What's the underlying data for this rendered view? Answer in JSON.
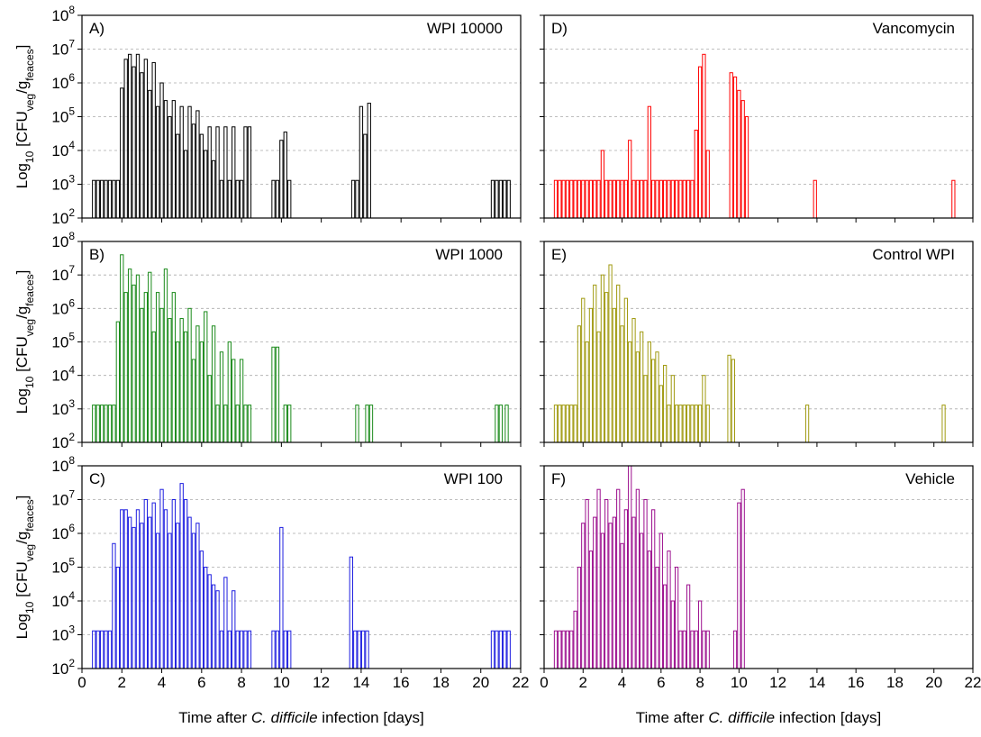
{
  "chart_data": [
    {
      "type": "bar",
      "panel": "A)",
      "title": "WPI 10000",
      "color": "#000000",
      "ylabel": [
        "Log",
        "10",
        " [CFU",
        "veg",
        "/g",
        "feaces",
        "]"
      ],
      "x": [
        0.6,
        0.8,
        1,
        1.2,
        1.4,
        1.6,
        1.8,
        2,
        2.2,
        2.4,
        2.6,
        2.8,
        3,
        3.2,
        3.4,
        3.6,
        3.8,
        4,
        4.2,
        4.4,
        4.6,
        4.8,
        5,
        5.2,
        5.4,
        5.6,
        5.8,
        6,
        6.2,
        6.4,
        6.6,
        6.8,
        7,
        7.2,
        7.4,
        7.6,
        7.8,
        8,
        8.2,
        8.4,
        9.6,
        9.8,
        10,
        10.2,
        10.4,
        13.6,
        13.8,
        14,
        14.2,
        14.4,
        20.6,
        20.8,
        21,
        21.2,
        21.4
      ],
      "values": [
        1300,
        1300,
        1300,
        1300,
        1300,
        1300,
        1300,
        700000,
        5000000,
        7000000,
        3000000,
        7000000,
        2000000,
        5000000,
        600000,
        4000000,
        200000,
        1000000,
        300000,
        100000,
        300000,
        30000,
        200000,
        10000,
        200000,
        60000,
        150000,
        30000,
        10000,
        50000,
        5000,
        50000,
        1300,
        50000,
        1300,
        50000,
        1300,
        1300,
        50000,
        50000,
        1300,
        1300,
        20000,
        35000,
        1300,
        1300,
        1300,
        200000,
        30000,
        250000,
        1300,
        1300,
        1300,
        1300,
        1300
      ],
      "xlim": [
        0,
        22
      ],
      "xticks": [
        0,
        2,
        4,
        6,
        8,
        10,
        12,
        14,
        16,
        18,
        20,
        22
      ],
      "ylim": [
        100,
        100000000
      ],
      "log_y": true,
      "grid": true,
      "yticks": [
        {
          "value": 100,
          "label": "10",
          "exponent": "2"
        },
        {
          "value": 1000,
          "label": "10",
          "exponent": "3"
        },
        {
          "value": 10000,
          "label": "10",
          "exponent": "4"
        },
        {
          "value": 100000,
          "label": "10",
          "exponent": "5"
        },
        {
          "value": 1000000,
          "label": "10",
          "exponent": "6"
        },
        {
          "value": 10000000,
          "label": "10",
          "exponent": "7"
        },
        {
          "value": 100000000,
          "label": "10",
          "exponent": "8"
        }
      ]
    },
    {
      "type": "bar",
      "panel": "B)",
      "title": "WPI 1000",
      "color": "#1a8a1a",
      "ylabel": [
        "Log",
        "10",
        " [CFU",
        "veg",
        "/g",
        "feaces",
        "]"
      ],
      "x": [
        0.6,
        0.8,
        1,
        1.2,
        1.4,
        1.6,
        1.8,
        2,
        2.2,
        2.4,
        2.6,
        2.8,
        3,
        3.2,
        3.4,
        3.6,
        3.8,
        4,
        4.2,
        4.4,
        4.6,
        4.8,
        5,
        5.2,
        5.4,
        5.6,
        5.8,
        6,
        6.2,
        6.4,
        6.6,
        6.8,
        7,
        7.2,
        7.4,
        7.6,
        7.8,
        8,
        8.2,
        8.4,
        9.6,
        9.8,
        10.2,
        10.4,
        13.8,
        14.3,
        14.5,
        20.8,
        21,
        21.3
      ],
      "values": [
        1300,
        1300,
        1300,
        1300,
        1300,
        1300,
        400000,
        40000000,
        3000000,
        15000000,
        5000000,
        10000000,
        1000000,
        3000000,
        12000000,
        200000,
        3000000,
        1000000,
        15000000,
        500000,
        3000000,
        100000,
        500000,
        200000,
        1000000,
        30000,
        300000,
        100000,
        800000,
        10000,
        300000,
        1300,
        50000,
        1300,
        100000,
        30000,
        1300,
        30000,
        1300,
        1300,
        70000,
        70000,
        1300,
        1300,
        1300,
        1300,
        1300,
        1300,
        1300,
        1300
      ],
      "xlim": [
        0,
        22
      ],
      "xticks": [
        0,
        2,
        4,
        6,
        8,
        10,
        12,
        14,
        16,
        18,
        20,
        22
      ],
      "ylim": [
        100,
        100000000
      ],
      "log_y": true,
      "grid": true,
      "yticks": [
        {
          "value": 100,
          "label": "10",
          "exponent": "2"
        },
        {
          "value": 1000,
          "label": "10",
          "exponent": "3"
        },
        {
          "value": 10000,
          "label": "10",
          "exponent": "4"
        },
        {
          "value": 100000,
          "label": "10",
          "exponent": "5"
        },
        {
          "value": 1000000,
          "label": "10",
          "exponent": "6"
        },
        {
          "value": 10000000,
          "label": "10",
          "exponent": "7"
        },
        {
          "value": 100000000,
          "label": "10",
          "exponent": "8"
        }
      ]
    },
    {
      "type": "bar",
      "panel": "C)",
      "title": "WPI 100",
      "color": "#1f1fe0",
      "ylabel": [
        "Log",
        "10",
        " [CFU",
        "veg",
        "/g",
        "feaces",
        "]"
      ],
      "xlabel": [
        "Time after ",
        "C. difficile",
        " infection [days]"
      ],
      "x": [
        0.6,
        0.8,
        1,
        1.2,
        1.4,
        1.6,
        1.8,
        2,
        2.2,
        2.4,
        2.6,
        2.8,
        3,
        3.2,
        3.4,
        3.6,
        3.8,
        4,
        4.2,
        4.4,
        4.6,
        4.8,
        5,
        5.2,
        5.4,
        5.6,
        5.8,
        6,
        6.2,
        6.4,
        6.6,
        6.8,
        7,
        7.2,
        7.4,
        7.6,
        7.8,
        8,
        8.2,
        8.4,
        9.6,
        9.8,
        10,
        10.2,
        10.4,
        13.5,
        13.7,
        13.9,
        14.1,
        14.3,
        20.6,
        20.8,
        21,
        21.2,
        21.4
      ],
      "values": [
        1300,
        1300,
        1300,
        1300,
        1300,
        500000,
        100000,
        5000000,
        5000000,
        3000000,
        1500000,
        5000000,
        2000000,
        10000000,
        3000000,
        8000000,
        1000000,
        20000000,
        5000000,
        1000000,
        10000000,
        2000000,
        30000000,
        10000000,
        3000000,
        1000000,
        2000000,
        300000,
        100000,
        60000,
        30000,
        20000,
        1300,
        50000,
        1300,
        20000,
        1300,
        1300,
        1300,
        1300,
        1300,
        1300,
        1500000,
        1300,
        1300,
        200000,
        1300,
        1300,
        1300,
        1300,
        1300,
        1300,
        1300,
        1300,
        1300
      ],
      "xlim": [
        0,
        22
      ],
      "xticks": [
        0,
        2,
        4,
        6,
        8,
        10,
        12,
        14,
        16,
        18,
        20,
        22
      ],
      "ylim": [
        100,
        100000000
      ],
      "log_y": true,
      "grid": true,
      "yticks": [
        {
          "value": 100,
          "label": "10",
          "exponent": "2"
        },
        {
          "value": 1000,
          "label": "10",
          "exponent": "3"
        },
        {
          "value": 10000,
          "label": "10",
          "exponent": "4"
        },
        {
          "value": 100000,
          "label": "10",
          "exponent": "5"
        },
        {
          "value": 1000000,
          "label": "10",
          "exponent": "6"
        },
        {
          "value": 10000000,
          "label": "10",
          "exponent": "7"
        },
        {
          "value": 100000000,
          "label": "10",
          "exponent": "8"
        }
      ]
    },
    {
      "type": "bar",
      "panel": "D)",
      "title": "Vancomycin",
      "color": "#ff0000",
      "x": [
        0.6,
        0.8,
        1,
        1.2,
        1.4,
        1.6,
        1.8,
        2,
        2.2,
        2.4,
        2.6,
        2.8,
        3,
        3.2,
        3.4,
        3.6,
        3.8,
        4,
        4.2,
        4.4,
        4.6,
        4.8,
        5,
        5.2,
        5.4,
        5.6,
        5.8,
        6,
        6.2,
        6.4,
        6.6,
        6.8,
        7,
        7.2,
        7.4,
        7.6,
        7.8,
        8,
        8.2,
        8.4,
        9.6,
        9.8,
        10,
        10.2,
        10.4,
        13.9,
        21
      ],
      "values": [
        1300,
        1300,
        1300,
        1300,
        1300,
        1300,
        1300,
        1300,
        1300,
        1300,
        1300,
        1300,
        10000,
        1300,
        1300,
        1300,
        1300,
        1300,
        1300,
        20000,
        1300,
        1300,
        1300,
        1300,
        200000,
        1300,
        1300,
        1300,
        1300,
        1300,
        1300,
        1300,
        1300,
        1300,
        1300,
        1300,
        40000,
        3000000,
        7000000,
        10000,
        2000000,
        1500000,
        600000,
        300000,
        100000,
        1300,
        1300
      ],
      "xlim": [
        0,
        22
      ],
      "xticks": [
        0,
        2,
        4,
        6,
        8,
        10,
        12,
        14,
        16,
        18,
        20,
        22
      ],
      "ylim": [
        100,
        100000000
      ],
      "log_y": true,
      "grid": true,
      "yticks": [
        100,
        1000,
        10000,
        100000,
        1000000,
        10000000,
        100000000
      ]
    },
    {
      "type": "bar",
      "panel": "E)",
      "title": "Control WPI",
      "color": "#a09a10",
      "x": [
        0.6,
        0.8,
        1,
        1.2,
        1.4,
        1.6,
        1.8,
        2,
        2.2,
        2.4,
        2.6,
        2.8,
        3,
        3.2,
        3.4,
        3.6,
        3.8,
        4,
        4.2,
        4.4,
        4.6,
        4.8,
        5,
        5.2,
        5.4,
        5.6,
        5.8,
        6,
        6.2,
        6.4,
        6.6,
        6.8,
        7,
        7.2,
        7.4,
        7.6,
        7.8,
        8,
        8.2,
        8.4,
        9.5,
        9.7,
        13.5,
        20.5
      ],
      "values": [
        1300,
        1300,
        1300,
        1300,
        1300,
        1300,
        300000,
        2000000,
        100000,
        1000000,
        5000000,
        200000,
        10000000,
        3000000,
        20000000,
        1000000,
        5000000,
        300000,
        2000000,
        100000,
        500000,
        50000,
        200000,
        10000,
        100000,
        30000,
        50000,
        5000,
        20000,
        1300,
        10000,
        1300,
        1300,
        1300,
        1300,
        1300,
        1300,
        1300,
        10000,
        1300,
        40000,
        30000,
        1300,
        1300
      ],
      "xlim": [
        0,
        22
      ],
      "xticks": [
        0,
        2,
        4,
        6,
        8,
        10,
        12,
        14,
        16,
        18,
        20,
        22
      ],
      "ylim": [
        100,
        100000000
      ],
      "log_y": true,
      "grid": true,
      "yticks": [
        100,
        1000,
        10000,
        100000,
        1000000,
        10000000,
        100000000
      ]
    },
    {
      "type": "bar",
      "panel": "F)",
      "title": "Vehicle",
      "color": "#9c0f8e",
      "xlabel": [
        "Time after ",
        "C. difficile",
        " infection [days]"
      ],
      "x": [
        0.6,
        0.8,
        1,
        1.2,
        1.4,
        1.6,
        1.8,
        2,
        2.2,
        2.4,
        2.6,
        2.8,
        3,
        3.2,
        3.4,
        3.6,
        3.8,
        4,
        4.2,
        4.4,
        4.6,
        4.8,
        5,
        5.2,
        5.4,
        5.6,
        5.8,
        6,
        6.2,
        6.4,
        6.6,
        6.8,
        7,
        7.2,
        7.4,
        7.6,
        7.8,
        8,
        8.2,
        8.4,
        9.8,
        10,
        10.2
      ],
      "values": [
        1300,
        1300,
        1300,
        1300,
        1300,
        5000,
        100000,
        2000000,
        10000000,
        300000,
        3000000,
        20000000,
        1000000,
        10000000,
        2000000,
        3000000,
        20000000,
        500000,
        5000000,
        100000000,
        3000000,
        20000000,
        1000000,
        10000000,
        300000,
        5000000,
        100000,
        1000000,
        30000,
        300000,
        10000,
        100000,
        1300,
        1300,
        30000,
        1300,
        1300,
        10000,
        1300,
        1300,
        1300,
        8000000,
        20000000
      ],
      "xlim": [
        0,
        22
      ],
      "xticks": [
        0,
        2,
        4,
        6,
        8,
        10,
        12,
        14,
        16,
        18,
        20,
        22
      ],
      "ylim": [
        100,
        100000000
      ],
      "log_y": true,
      "grid": true,
      "yticks": [
        100,
        1000,
        10000,
        100000,
        1000000,
        10000000,
        100000000
      ]
    }
  ]
}
